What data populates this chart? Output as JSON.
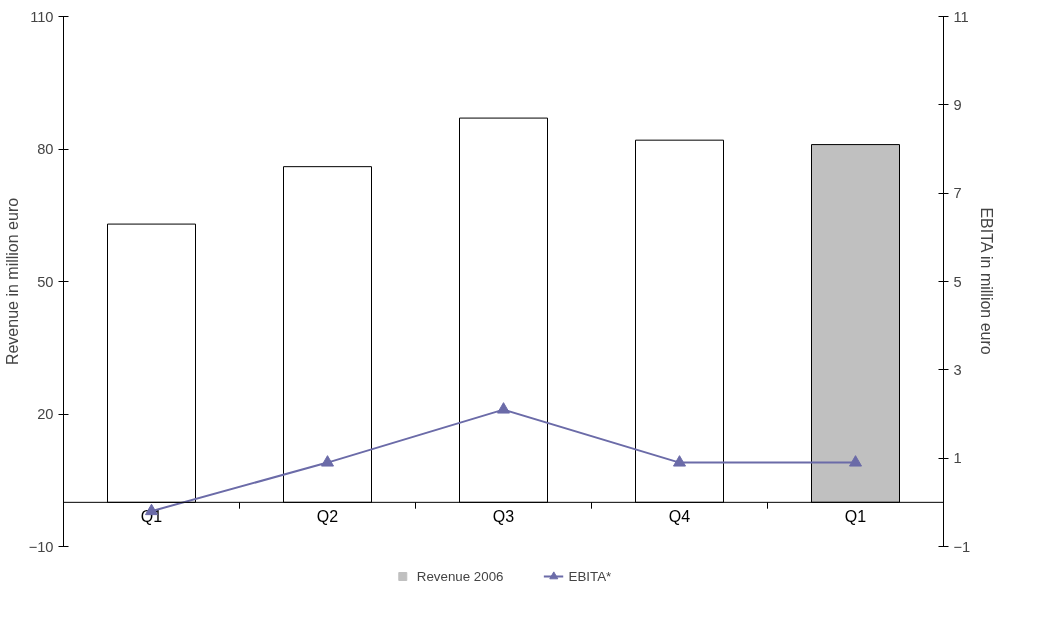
{
  "chart_data": {
    "type": "bar",
    "categories": [
      "Q1",
      "Q2",
      "Q3",
      "Q4",
      "Q1"
    ],
    "ylabel": "Revenue in million euro",
    "y2label": "EBITA in million euro",
    "ylim": [
      -10,
      110
    ],
    "yticks": [
      -10,
      20,
      50,
      80,
      110
    ],
    "y2lim": [
      -1,
      11
    ],
    "y2ticks": [
      -1,
      1,
      3,
      5,
      7,
      9,
      11
    ],
    "grid": false,
    "legend": "bottom",
    "series": [
      {
        "color": "#ffffff",
        "values": [
          63,
          76,
          87,
          82,
          null
        ]
      },
      {
        "name": "Revenue 2006",
        "color": "#c0c0c0",
        "values": [
          null,
          null,
          null,
          null,
          81
        ]
      },
      {
        "type": "line",
        "name": "EBITA*",
        "color": "#6b6ba8",
        "axis": "y2",
        "marker": "triangle",
        "values": [
          -0.2,
          0.9,
          2.1,
          0.9,
          0.9
        ]
      }
    ]
  }
}
